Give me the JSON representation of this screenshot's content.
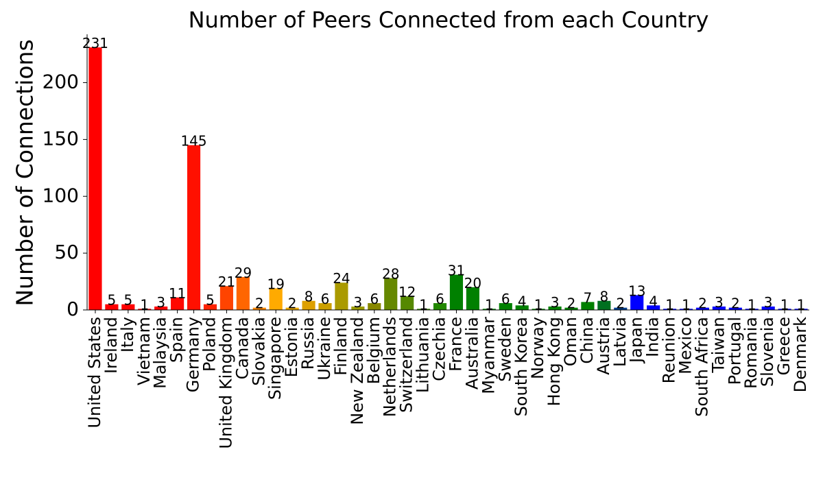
{
  "chart_data": {
    "type": "bar",
    "title": "Number of Peers Connected from each Country",
    "y_label": "Number of Connections",
    "categories": [
      "United States",
      "Ireland",
      "Italy",
      "Vietnam",
      "Malaysia",
      "Spain",
      "Germany",
      "Poland",
      "United Kingdom",
      "Canada",
      "Slovakia",
      "Singapore",
      "Estonia",
      "Russia",
      "Ukraine",
      "Finland",
      "New Zealand",
      "Belgium",
      "Netherlands",
      "Switzerland",
      "Lithuania",
      "Czechia",
      "France",
      "Australia",
      "Myanmar",
      "Sweden",
      "South Korea",
      "Norway",
      "Hong Kong",
      "Oman",
      "China",
      "Austria",
      "Latvia",
      "Japan",
      "India",
      "Reunion",
      "Mexico",
      "South Africa",
      "Taiwan",
      "Portugal",
      "Romania",
      "Slovenia",
      "Greece",
      "Denmark"
    ],
    "values": [
      231,
      5,
      5,
      1,
      3,
      11,
      145,
      5,
      21,
      29,
      2,
      19,
      2,
      8,
      6,
      24,
      3,
      6,
      28,
      12,
      1,
      6,
      31,
      20,
      1,
      6,
      4,
      1,
      3,
      2,
      7,
      8,
      2,
      13,
      4,
      1,
      1,
      2,
      3,
      2,
      1,
      3,
      1,
      1
    ],
    "colors": [
      "#ff0000",
      "#ff0000",
      "#ff0000",
      "#ff0000",
      "#ff0000",
      "#ff0800",
      "#ff1000",
      "#ff2200",
      "#ff4400",
      "#ff6600",
      "#ff8800",
      "#ffaa00",
      "#eeaa00",
      "#dda000",
      "#cca000",
      "#aa9a00",
      "#999900",
      "#888800",
      "#668800",
      "#558800",
      "#338800",
      "#228800",
      "#008000",
      "#008000",
      "#008000",
      "#008000",
      "#008000",
      "#008000",
      "#008000",
      "#008000",
      "#008000",
      "#007020",
      "#004090",
      "#0000ff",
      "#0000ff",
      "#0000ff",
      "#0000ff",
      "#0000ff",
      "#0000ff",
      "#0000ff",
      "#0000ff",
      "#0000ff",
      "#0000ff",
      "#0000ff"
    ],
    "ylim": [
      0,
      242.55
    ],
    "yticks": [
      0,
      50,
      100,
      150,
      200
    ],
    "grid": false
  }
}
